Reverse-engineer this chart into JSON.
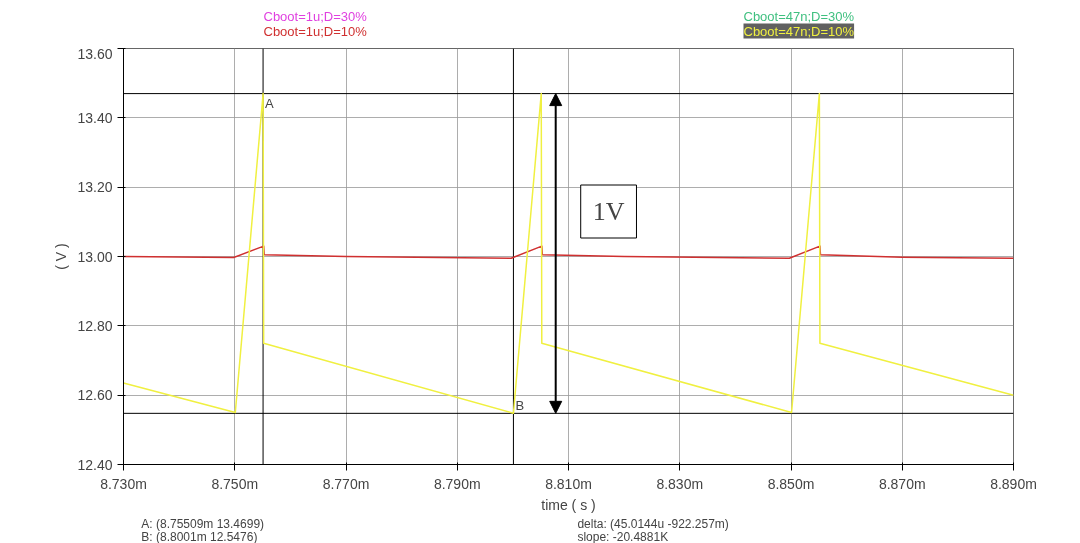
{
  "chart_data": {
    "type": "line",
    "xlabel": "time ( s )",
    "ylabel": "( V )",
    "series": [
      {
        "name": "Cboot=1u;D=30%",
        "color": "#e040e0"
      },
      {
        "name": "Cboot=1u;D=10%",
        "color": "#d03030",
        "x": [
          8.73,
          8.7498,
          8.7552,
          8.7553,
          8.77,
          8.7997,
          8.8052,
          8.8053,
          8.82,
          8.8497,
          8.8552,
          8.8553,
          8.87,
          8.89
        ],
        "values": [
          13.0,
          12.997,
          13.03,
          13.005,
          13.0,
          12.995,
          13.03,
          13.005,
          13.0,
          12.995,
          13.03,
          13.005,
          12.998,
          12.995
        ]
      },
      {
        "name": "Cboot=47n;D=30%",
        "color": "#40c080"
      },
      {
        "name": "Cboot=47n;D=10%",
        "color": "#f0f040",
        "x": [
          8.73,
          8.7501,
          8.7551,
          8.7552,
          8.8001,
          8.8051,
          8.8052,
          8.8501,
          8.8551,
          8.8552,
          8.89
        ],
        "values": [
          12.635,
          12.55,
          13.47,
          12.75,
          12.548,
          13.47,
          12.75,
          12.55,
          13.47,
          12.75,
          12.6
        ]
      }
    ],
    "xlim": [
      8.73,
      8.89
    ],
    "xticks": [
      {
        "value": 8.73,
        "label": "8.730m"
      },
      {
        "value": 8.75,
        "label": "8.750m"
      },
      {
        "value": 8.77,
        "label": "8.770m"
      },
      {
        "value": 8.79,
        "label": "8.790m"
      },
      {
        "value": 8.81,
        "label": "8.810m"
      },
      {
        "value": 8.83,
        "label": "8.830m"
      },
      {
        "value": 8.85,
        "label": "8.850m"
      },
      {
        "value": 8.87,
        "label": "8.870m"
      },
      {
        "value": 8.89,
        "label": "8.890m"
      }
    ],
    "ylim": [
      12.4,
      13.6
    ],
    "yticks": [
      {
        "value": 12.4,
        "label": "12.40"
      },
      {
        "value": 12.6,
        "label": "12.60"
      },
      {
        "value": 12.8,
        "label": "12.80"
      },
      {
        "value": 13.0,
        "label": "13.00"
      },
      {
        "value": 13.2,
        "label": "13.20"
      },
      {
        "value": 13.4,
        "label": "13.40"
      },
      {
        "value": 13.6,
        "label": "13.60"
      }
    ],
    "grid": true,
    "legend": "top",
    "ref_lines": [
      {
        "axis": "x",
        "value": 8.75509,
        "color": "#000000"
      },
      {
        "axis": "x",
        "value": 8.8001,
        "color": "#000000"
      },
      {
        "axis": "y",
        "value": 13.4699,
        "color": "#000000"
      },
      {
        "axis": "y",
        "value": 12.5476,
        "color": "#000000"
      }
    ],
    "annotations": [
      {
        "text": "A",
        "x": 8.75509,
        "y": 13.4699
      },
      {
        "text": "B",
        "x": 8.8001,
        "y": 12.5476
      },
      {
        "text": "1V",
        "x": 8.8077,
        "y": 13.0
      },
      "A: (8.75509m 13.4699)",
      "B: (8.8001m 12.5476)",
      "delta: (45.0144u -922.257m)",
      "slope: -20.4881K"
    ]
  }
}
